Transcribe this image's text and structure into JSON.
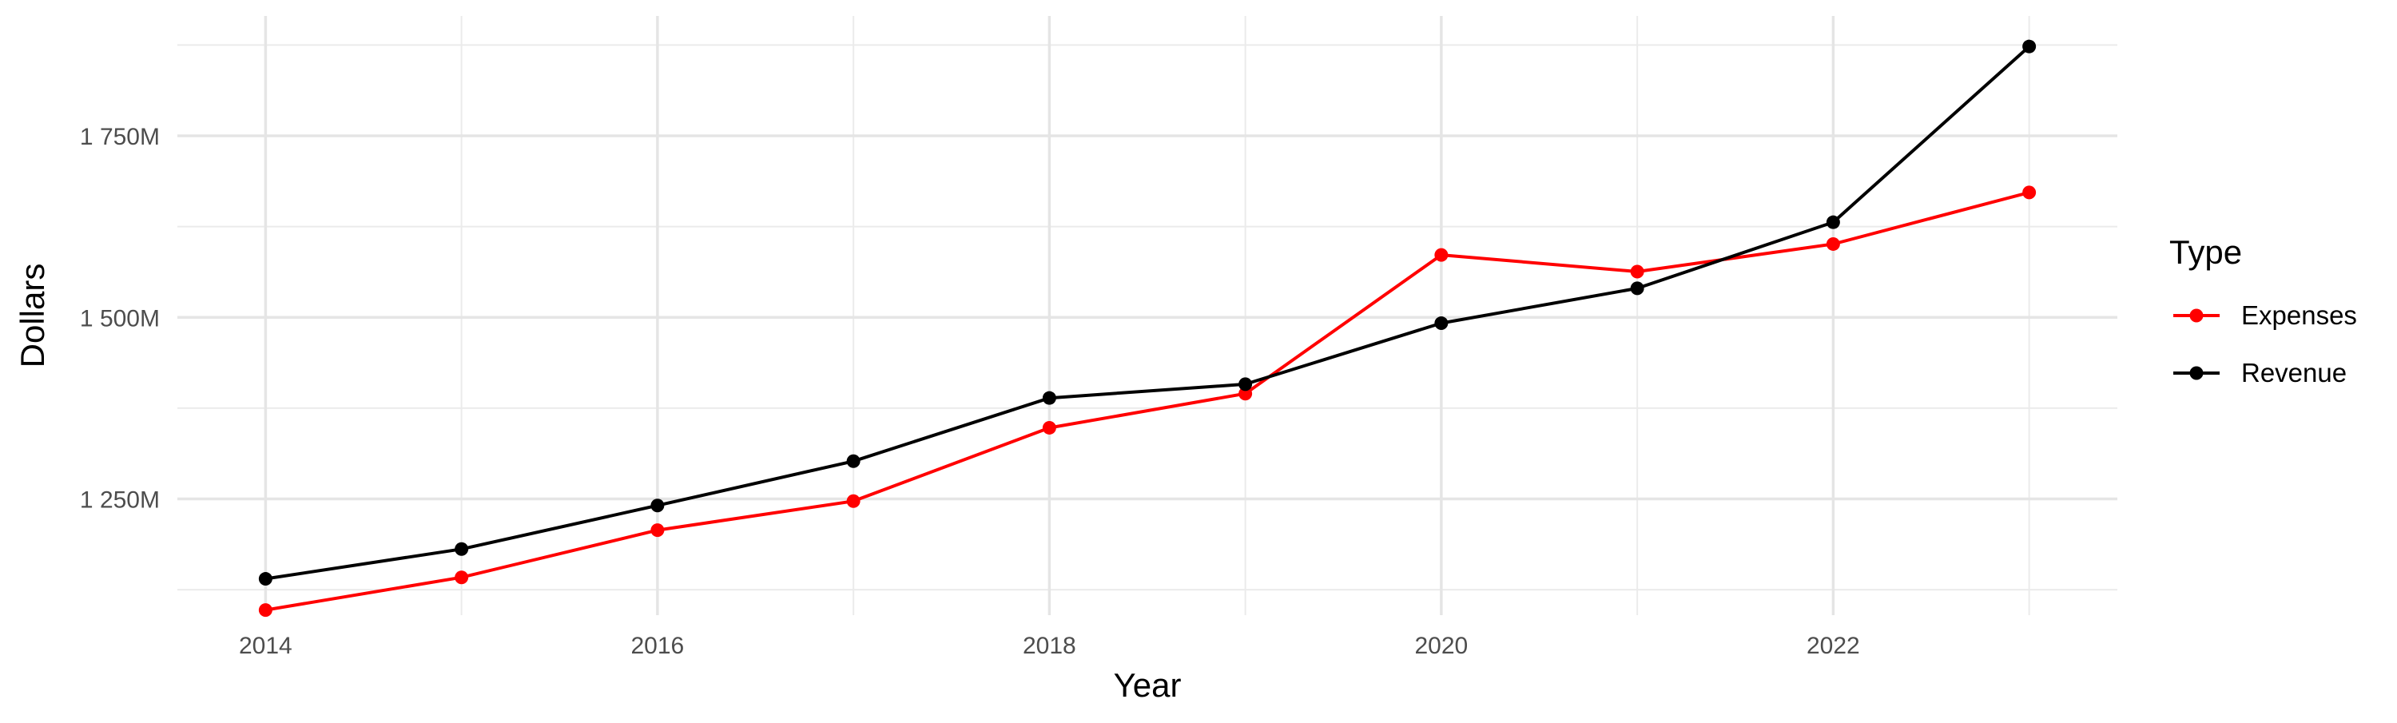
{
  "chart_data": {
    "type": "line",
    "title": "",
    "xlabel": "Year",
    "ylabel": "Dollars",
    "x": [
      2014,
      2015,
      2016,
      2017,
      2018,
      2019,
      2020,
      2021,
      2022,
      2023
    ],
    "xlim": [
      2013.55,
      2023.45
    ],
    "ylim": [
      1090,
      1915
    ],
    "x_ticks": [
      2014,
      2016,
      2018,
      2020,
      2022
    ],
    "x_tick_labels": [
      "2014",
      "2016",
      "2018",
      "2020",
      "2022"
    ],
    "y_ticks": [
      1250,
      1500,
      1750
    ],
    "y_tick_labels": [
      "1 250M",
      "1 500M",
      "1 750M"
    ],
    "y_unit": "millions of dollars",
    "grid": true,
    "legend": {
      "title": "Type",
      "position": "right"
    },
    "series": [
      {
        "name": "Expenses",
        "color": "#ff0000",
        "values": [
          1097,
          1142,
          1207,
          1247,
          1348,
          1395,
          1586,
          1563,
          1601,
          1672
        ]
      },
      {
        "name": "Revenue",
        "color": "#000000",
        "values": [
          1140,
          1181,
          1241,
          1302,
          1389,
          1408,
          1492,
          1540,
          1631,
          1873
        ]
      }
    ]
  }
}
